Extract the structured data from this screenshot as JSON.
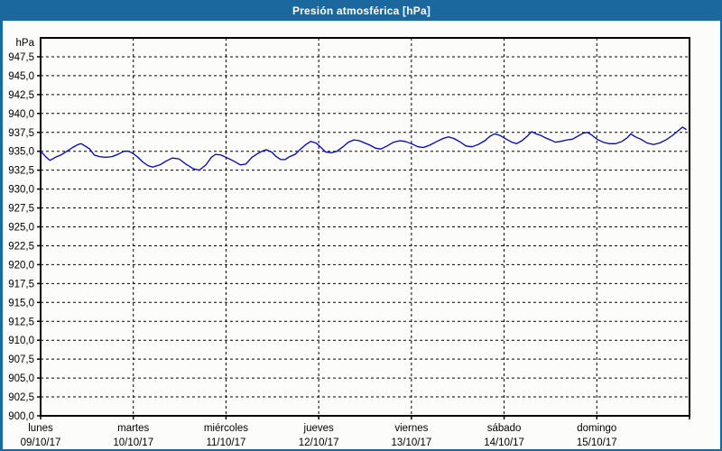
{
  "window": {
    "title": "Presión atmosférica [hPa]"
  },
  "chart_data": {
    "type": "line",
    "title": "Presión atmosférica [hPa]",
    "unit_label": "hPa",
    "ylim": [
      900,
      950
    ],
    "y_grid_step": 2.5,
    "grid": "dashed",
    "decimal_separator": ",",
    "colors": {
      "titlebar": "#1b689f",
      "window_border": "#1b689f",
      "line": "#0000bb",
      "grid": "#000000",
      "text": "#000000",
      "background": "#fcfdfa"
    },
    "y_ticks": [
      {
        "v": 947.5,
        "label": "947,5"
      },
      {
        "v": 945.0,
        "label": "945,0"
      },
      {
        "v": 942.5,
        "label": "942,5"
      },
      {
        "v": 940.0,
        "label": "940,0"
      },
      {
        "v": 937.5,
        "label": "937,5"
      },
      {
        "v": 935.0,
        "label": "935,0"
      },
      {
        "v": 932.5,
        "label": "932,5"
      },
      {
        "v": 930.0,
        "label": "930,0"
      },
      {
        "v": 927.5,
        "label": "927,5"
      },
      {
        "v": 925.0,
        "label": "925,0"
      },
      {
        "v": 922.5,
        "label": "922,5"
      },
      {
        "v": 920.0,
        "label": "920,0"
      },
      {
        "v": 917.5,
        "label": "917,5"
      },
      {
        "v": 915.0,
        "label": "915,0"
      },
      {
        "v": 912.5,
        "label": "912,5"
      },
      {
        "v": 910.0,
        "label": "910,0"
      },
      {
        "v": 907.5,
        "label": "907,5"
      },
      {
        "v": 905.0,
        "label": "905,0"
      },
      {
        "v": 902.5,
        "label": "902,5"
      },
      {
        "v": 900.0,
        "label": "900,0"
      }
    ],
    "x_days": [
      {
        "name": "lunes",
        "date": "09/10/17"
      },
      {
        "name": "martes",
        "date": "10/10/17"
      },
      {
        "name": "miércoles",
        "date": "11/10/17"
      },
      {
        "name": "jueves",
        "date": "12/10/17"
      },
      {
        "name": "viernes",
        "date": "13/10/17"
      },
      {
        "name": "sábado",
        "date": "14/10/17"
      },
      {
        "name": "domingo",
        "date": "15/10/17"
      }
    ],
    "x_hours_total": 168,
    "series": [
      {
        "name": "Presión atmosférica",
        "hours": [
          0,
          1.3,
          2.4,
          3.8,
          5.2,
          6.8,
          8.3,
          9.7,
          10.5,
          11.5,
          12.7,
          13.9,
          15.2,
          16.8,
          18.5,
          20,
          21.6,
          22.8,
          24,
          25.2,
          26.4,
          27.8,
          29,
          30.9,
          32.5,
          34.1,
          35.8,
          37.6,
          39.5,
          41.1,
          42.8,
          44.2,
          45.3,
          46.7,
          48.4,
          50,
          51.7,
          53.1,
          54.7,
          55.9,
          57.3,
          58.4,
          59.8,
          61,
          62.2,
          63.3,
          64.5,
          65.9,
          67.3,
          68.7,
          69.9,
          71.3,
          72.4,
          73.8,
          75.3,
          76.7,
          78.3,
          79.7,
          81.1,
          82.5,
          83.9,
          85.3,
          86.7,
          88.1,
          89.7,
          91.4,
          93,
          94.4,
          96,
          97.7,
          99.1,
          100.7,
          102.6,
          104.2,
          105.6,
          107,
          108.7,
          110.1,
          111.7,
          113.3,
          115,
          116.4,
          117.5,
          118.9,
          120.6,
          122,
          123.2,
          124.6,
          126,
          127.1,
          128.3,
          129.5,
          130.6,
          132,
          133.2,
          134.6,
          136.3,
          137.7,
          139.1,
          140.5,
          141.6,
          142.8,
          144,
          145.6,
          147.2,
          148.9,
          150.5,
          151.9,
          152.8,
          154,
          155.4,
          157,
          158.7,
          160.3,
          161.9,
          163.6,
          165,
          166.2,
          167.1
        ],
        "values": [
          935.0,
          934.3,
          933.8,
          934.2,
          934.5,
          935.0,
          935.5,
          935.9,
          936.0,
          935.7,
          935.3,
          934.5,
          934.3,
          934.2,
          934.3,
          934.6,
          935.0,
          935.0,
          934.7,
          934.2,
          933.6,
          933.1,
          932.9,
          933.2,
          933.7,
          934.1,
          934.0,
          933.3,
          932.7,
          932.5,
          933.2,
          934.2,
          934.6,
          934.5,
          934.1,
          933.7,
          933.2,
          933.3,
          934.2,
          934.6,
          935.0,
          935.2,
          934.9,
          934.3,
          933.9,
          933.9,
          934.3,
          934.6,
          935.3,
          935.9,
          936.3,
          936.1,
          935.6,
          934.9,
          934.8,
          935.0,
          935.6,
          936.2,
          936.5,
          936.4,
          936.1,
          935.8,
          935.4,
          935.3,
          935.7,
          936.2,
          936.4,
          936.3,
          936.0,
          935.6,
          935.5,
          935.8,
          936.3,
          936.7,
          936.9,
          936.7,
          936.2,
          935.7,
          935.6,
          935.9,
          936.4,
          937.0,
          937.3,
          937.1,
          936.6,
          936.2,
          936.0,
          936.4,
          937.0,
          937.6,
          937.3,
          937.1,
          936.8,
          936.5,
          936.2,
          936.3,
          936.5,
          936.6,
          937.0,
          937.4,
          937.5,
          937.1,
          936.6,
          936.2,
          936.0,
          936.0,
          936.3,
          936.8,
          937.3,
          936.9,
          936.6,
          936.1,
          935.9,
          936.1,
          936.5,
          937.1,
          937.7,
          938.2,
          937.9
        ]
      }
    ]
  }
}
